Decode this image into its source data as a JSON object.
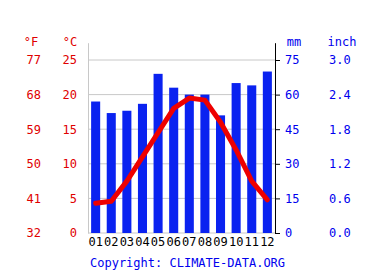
{
  "chart_data": {
    "type": "bar",
    "categories": [
      "01",
      "02",
      "03",
      "04",
      "05",
      "06",
      "07",
      "08",
      "09",
      "10",
      "11",
      "12"
    ],
    "series": [
      {
        "type": "bar",
        "axis": "y2",
        "color": "#0a22f0",
        "values": [
          57,
          52,
          53,
          56,
          69,
          63,
          60,
          60,
          51,
          65,
          64,
          70
        ]
      },
      {
        "type": "line",
        "color": "#ee0000",
        "values": [
          4.3,
          4.6,
          7.5,
          11,
          14.5,
          18,
          19.5,
          19.2,
          16,
          12,
          7.5,
          4.8
        ]
      }
    ],
    "ylabel": "°C",
    "ylim": [
      0,
      27.5
    ],
    "yticks": [
      0,
      5,
      10,
      15,
      20,
      25
    ],
    "y2label": "mm",
    "y2lim": [
      0,
      82.5
    ],
    "y2ticks": [
      0,
      15,
      30,
      45,
      60,
      75
    ],
    "fahrenheit_axis": {
      "label": "°F",
      "lim": [
        32,
        81.5
      ],
      "ticks": [
        32,
        41,
        50,
        59,
        68,
        77
      ]
    },
    "inch_axis": {
      "label": "inch",
      "lim": [
        0,
        3.3
      ],
      "ticks": [
        {
          "value": 0,
          "label": "0.0"
        },
        {
          "value": 0.6,
          "label": "0.6"
        },
        {
          "value": 1.2,
          "label": "1.2"
        },
        {
          "value": 1.8,
          "label": "1.8"
        },
        {
          "value": 2.4,
          "label": "2.4"
        },
        {
          "value": 3,
          "label": "3.0"
        }
      ]
    },
    "grid": true,
    "footer": "Copyright: CLIMATE-DATA.ORG"
  }
}
